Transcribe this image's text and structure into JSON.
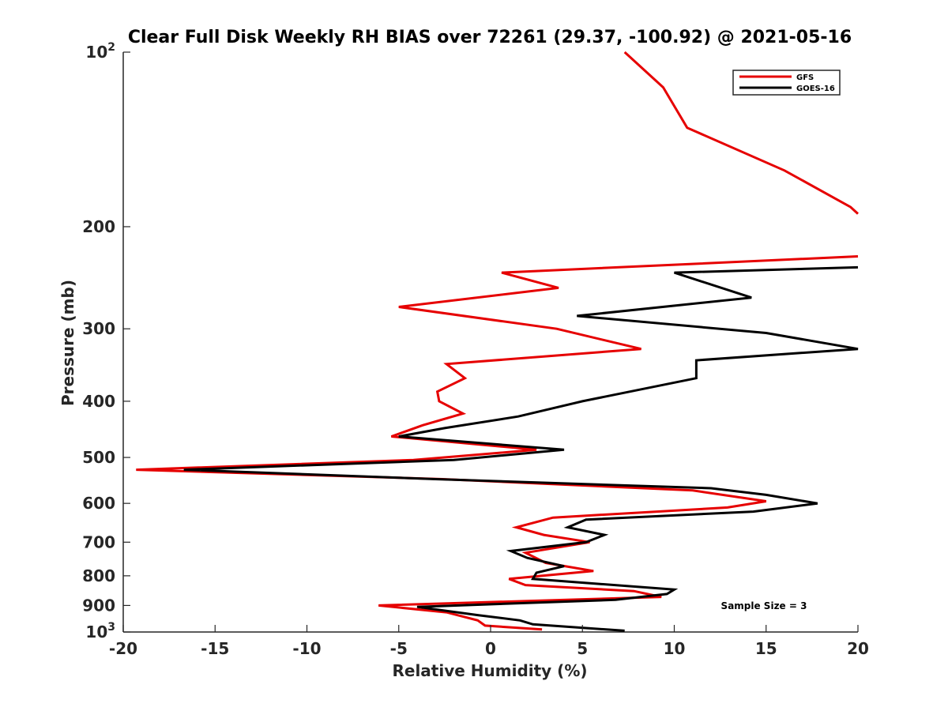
{
  "chart_data": {
    "type": "line",
    "title": "Clear Full Disk Weekly RH BIAS over 72261 (29.37, -100.92) @ 2021-05-16",
    "xlabel": "Relative Humidity (%)",
    "ylabel": "Pressure (mb)",
    "xlim": [
      -20,
      20
    ],
    "ylim": [
      100,
      1000
    ],
    "yscale": "log",
    "yreversed": true,
    "grid": false,
    "legend_position": "top-right",
    "x_ticks": [
      "-20",
      "-15",
      "-10",
      "-5",
      "0",
      "5",
      "10",
      "15",
      "20"
    ],
    "y_ticks": [
      {
        "value": 100,
        "base": "10",
        "exp": "2"
      },
      {
        "value": 200,
        "label": "200"
      },
      {
        "value": 300,
        "label": "300"
      },
      {
        "value": 400,
        "label": "400"
      },
      {
        "value": 500,
        "label": "500"
      },
      {
        "value": 600,
        "label": "600"
      },
      {
        "value": 700,
        "label": "700"
      },
      {
        "value": 800,
        "label": "800"
      },
      {
        "value": 900,
        "label": "900"
      },
      {
        "value": 1000,
        "base": "10",
        "exp": "3"
      }
    ],
    "annotation": "Sample Size = 3",
    "series": [
      {
        "name": "GFS",
        "color": "#e60000",
        "points": [
          [
            7.3,
            100
          ],
          [
            9.4,
            115
          ],
          [
            10.7,
            135
          ],
          [
            16.0,
            160
          ],
          [
            19.6,
            185
          ],
          [
            20,
            190
          ],
          [
            null,
            200
          ],
          [
            20,
            225
          ],
          [
            0.6,
            240
          ],
          [
            3.7,
            255
          ],
          [
            -5.0,
            275
          ],
          [
            3.6,
            300
          ],
          [
            8.2,
            325
          ],
          [
            -2.4,
            345
          ],
          [
            -1.4,
            365
          ],
          [
            -2.9,
            385
          ],
          [
            -2.8,
            400
          ],
          [
            -1.5,
            420
          ],
          [
            -3.7,
            440
          ],
          [
            -5.4,
            460
          ],
          [
            2.5,
            485
          ],
          [
            -4.2,
            505
          ],
          [
            -19.3,
            525
          ],
          [
            -2.6,
            545
          ],
          [
            11.0,
            570
          ],
          [
            15.0,
            595
          ],
          [
            12.9,
            610
          ],
          [
            3.4,
            635
          ],
          [
            1.4,
            660
          ],
          [
            2.9,
            680
          ],
          [
            5.4,
            700
          ],
          [
            1.9,
            730
          ],
          [
            3.0,
            760
          ],
          [
            5.6,
            785
          ],
          [
            1.0,
            810
          ],
          [
            1.9,
            830
          ],
          [
            7.8,
            850
          ],
          [
            9.3,
            870
          ],
          [
            -6.1,
            900
          ],
          [
            -2.4,
            925
          ],
          [
            -0.7,
            955
          ],
          [
            -0.3,
            975
          ],
          [
            2.8,
            990
          ]
        ]
      },
      {
        "name": "GOES-16",
        "color": "#000000",
        "points": [
          [
            20,
            235
          ],
          [
            10.0,
            240
          ],
          [
            14.2,
            265
          ],
          [
            4.7,
            285
          ],
          [
            15.0,
            305
          ],
          [
            20,
            325
          ],
          [
            11.2,
            340
          ],
          [
            11.2,
            365
          ],
          [
            5.0,
            400
          ],
          [
            1.5,
            425
          ],
          [
            -2.5,
            445
          ],
          [
            -5.0,
            460
          ],
          [
            4.0,
            485
          ],
          [
            -2.0,
            505
          ],
          [
            -16.7,
            525
          ],
          [
            -3.0,
            545
          ],
          [
            12.0,
            565
          ],
          [
            15.0,
            580
          ],
          [
            17.8,
            600
          ],
          [
            14.3,
            620
          ],
          [
            5.2,
            640
          ],
          [
            4.2,
            660
          ],
          [
            6.2,
            680
          ],
          [
            5.2,
            700
          ],
          [
            1.1,
            725
          ],
          [
            2.0,
            745
          ],
          [
            4.0,
            770
          ],
          [
            2.5,
            790
          ],
          [
            2.3,
            810
          ],
          [
            10.0,
            845
          ],
          [
            9.6,
            860
          ],
          [
            6.8,
            880
          ],
          [
            -4.0,
            905
          ],
          [
            -0.7,
            935
          ],
          [
            1.6,
            955
          ],
          [
            2.3,
            970
          ],
          [
            7.3,
            995
          ]
        ]
      }
    ]
  }
}
